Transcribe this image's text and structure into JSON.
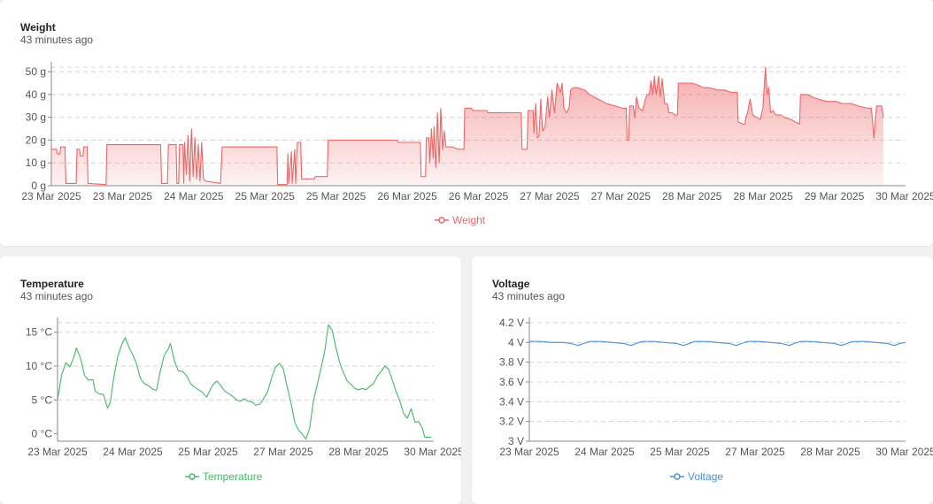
{
  "colors": {
    "weight": "#ee6666",
    "temperature": "#45b865",
    "voltage": "#4a90d9"
  },
  "weight_card": {
    "title": "Weight",
    "subtitle": "43 minutes ago",
    "legend": "Weight",
    "chart_data": {
      "type": "area",
      "series": [
        {
          "name": "Weight"
        }
      ],
      "ylim": [
        0,
        52
      ],
      "y_ticks": [
        0,
        10,
        20,
        30,
        40,
        50
      ],
      "y_tick_labels": [
        "0 g",
        "10 g",
        "20 g",
        "30 g",
        "40 g",
        "50 g"
      ],
      "x_tick_labels": [
        "23 Mar 2025",
        "23 Mar 2025",
        "24 Mar 2025",
        "25 Mar 2025",
        "25 Mar 2025",
        "26 Mar 2025",
        "26 Mar 2025",
        "27 Mar 2025",
        "27 Mar 2025",
        "28 Mar 2025",
        "28 Mar 2025",
        "29 Mar 2025",
        "30 Mar 2025"
      ],
      "x_range": [
        0,
        100
      ],
      "points": [
        [
          0,
          16
        ],
        [
          0.6,
          16
        ],
        [
          0.7,
          14
        ],
        [
          1.0,
          14
        ],
        [
          1.1,
          17
        ],
        [
          1.6,
          17
        ],
        [
          1.7,
          1
        ],
        [
          2.9,
          1
        ],
        [
          3.0,
          16
        ],
        [
          3.3,
          16
        ],
        [
          3.4,
          13
        ],
        [
          3.7,
          13
        ],
        [
          3.8,
          17
        ],
        [
          4.2,
          17
        ],
        [
          4.3,
          1
        ],
        [
          6.4,
          0.5
        ],
        [
          6.5,
          18
        ],
        [
          12.8,
          18
        ],
        [
          12.9,
          1
        ],
        [
          13.6,
          1
        ],
        [
          13.7,
          18
        ],
        [
          14.6,
          18
        ],
        [
          14.7,
          1
        ],
        [
          14.9,
          1
        ],
        [
          15.0,
          18
        ],
        [
          15.4,
          18
        ],
        [
          15.5,
          1
        ],
        [
          15.6,
          19
        ],
        [
          15.8,
          5
        ],
        [
          16.0,
          22
        ],
        [
          16.2,
          2
        ],
        [
          16.4,
          25
        ],
        [
          16.6,
          4
        ],
        [
          16.8,
          21
        ],
        [
          17.0,
          3
        ],
        [
          17.2,
          18
        ],
        [
          17.4,
          2
        ],
        [
          17.6,
          19
        ],
        [
          17.8,
          3
        ],
        [
          18.0,
          2
        ],
        [
          19.8,
          1
        ],
        [
          20.0,
          17
        ],
        [
          26.4,
          17
        ],
        [
          26.5,
          0.5
        ],
        [
          27.6,
          0.5
        ],
        [
          27.7,
          14
        ],
        [
          27.8,
          1
        ],
        [
          28.1,
          15
        ],
        [
          28.2,
          1
        ],
        [
          28.5,
          16
        ],
        [
          28.6,
          1
        ],
        [
          28.8,
          19
        ],
        [
          29.2,
          19
        ],
        [
          29.3,
          3
        ],
        [
          30.8,
          3
        ],
        [
          30.9,
          4
        ],
        [
          32.3,
          4
        ],
        [
          32.4,
          20
        ],
        [
          40.5,
          20
        ],
        [
          40.6,
          19
        ],
        [
          43.2,
          19
        ],
        [
          43.3,
          4
        ],
        [
          43.8,
          4
        ],
        [
          43.9,
          21
        ],
        [
          44.2,
          21
        ],
        [
          44.3,
          10
        ],
        [
          44.5,
          25
        ],
        [
          44.7,
          12
        ],
        [
          44.8,
          26
        ],
        [
          45.0,
          8
        ],
        [
          45.2,
          32
        ],
        [
          45.4,
          10
        ],
        [
          45.6,
          34
        ],
        [
          45.8,
          16
        ],
        [
          46.0,
          24
        ],
        [
          46.2,
          17
        ],
        [
          47.0,
          17
        ],
        [
          47.6,
          16
        ],
        [
          48.3,
          16
        ],
        [
          48.4,
          34
        ],
        [
          49.2,
          34
        ],
        [
          49.3,
          33
        ],
        [
          51.0,
          33
        ],
        [
          51.1,
          32
        ],
        [
          52.3,
          32
        ],
        [
          55.0,
          32
        ],
        [
          55.1,
          16
        ],
        [
          55.7,
          16
        ],
        [
          55.8,
          33
        ],
        [
          56.4,
          33
        ],
        [
          56.5,
          23
        ],
        [
          56.7,
          36
        ],
        [
          56.9,
          21
        ],
        [
          57.1,
          22
        ],
        [
          57.3,
          38
        ],
        [
          57.5,
          24
        ],
        [
          57.8,
          26
        ],
        [
          58.1,
          39
        ],
        [
          58.3,
          30
        ],
        [
          58.6,
          42
        ],
        [
          58.9,
          32
        ],
        [
          59.2,
          45
        ],
        [
          59.6,
          41
        ],
        [
          59.8,
          45
        ],
        [
          60.0,
          34
        ],
        [
          60.3,
          32
        ],
        [
          60.6,
          34
        ],
        [
          60.8,
          42
        ],
        [
          61.1,
          43
        ],
        [
          61.6,
          43
        ],
        [
          62.4,
          42
        ],
        [
          63.0,
          40
        ],
        [
          64.0,
          38
        ],
        [
          65.0,
          36
        ],
        [
          66.0,
          35
        ],
        [
          66.9,
          34
        ],
        [
          67.3,
          34
        ],
        [
          67.4,
          20
        ],
        [
          67.6,
          20
        ],
        [
          67.7,
          35
        ],
        [
          68.1,
          35
        ],
        [
          68.3,
          30
        ],
        [
          68.5,
          39
        ],
        [
          68.8,
          34
        ],
        [
          69.2,
          33
        ],
        [
          69.7,
          40
        ],
        [
          70.0,
          40
        ],
        [
          70.2,
          46
        ],
        [
          70.4,
          40
        ],
        [
          70.6,
          48
        ],
        [
          70.8,
          40
        ],
        [
          71.1,
          48
        ],
        [
          71.3,
          39
        ],
        [
          71.5,
          47
        ],
        [
          71.8,
          36
        ],
        [
          72.1,
          36
        ],
        [
          72.3,
          32
        ],
        [
          72.7,
          32
        ],
        [
          73.0,
          31
        ],
        [
          73.3,
          31
        ],
        [
          73.4,
          45
        ],
        [
          75.0,
          45
        ],
        [
          75.8,
          44
        ],
        [
          76.3,
          43
        ],
        [
          77.0,
          43
        ],
        [
          78.0,
          42
        ],
        [
          78.8,
          42
        ],
        [
          79.5,
          41
        ],
        [
          80.3,
          41
        ],
        [
          80.4,
          28
        ],
        [
          81.0,
          27
        ],
        [
          81.2,
          27
        ],
        [
          81.3,
          30
        ],
        [
          81.5,
          32
        ],
        [
          81.8,
          38
        ],
        [
          82.1,
          31
        ],
        [
          82.6,
          30
        ],
        [
          83.0,
          29
        ],
        [
          83.3,
          34
        ],
        [
          83.6,
          52
        ],
        [
          83.8,
          40
        ],
        [
          84.0,
          43
        ],
        [
          84.2,
          32
        ],
        [
          84.5,
          33
        ],
        [
          84.8,
          31
        ],
        [
          85.4,
          31
        ],
        [
          85.8,
          30
        ],
        [
          86.6,
          29
        ],
        [
          87.6,
          27
        ],
        [
          87.7,
          40
        ],
        [
          88.6,
          40
        ],
        [
          89.0,
          39
        ],
        [
          89.8,
          38
        ],
        [
          90.8,
          37
        ],
        [
          91.8,
          37
        ],
        [
          92.6,
          36
        ],
        [
          93.6,
          36
        ],
        [
          94.4,
          35
        ],
        [
          95.6,
          34
        ],
        [
          96.0,
          34
        ],
        [
          96.3,
          21
        ],
        [
          96.6,
          35
        ],
        [
          97.2,
          35
        ],
        [
          97.4,
          30
        ]
      ]
    }
  },
  "temp_card": {
    "title": "Temperature",
    "subtitle": "43 minutes ago",
    "legend": "Temperature",
    "chart_data": {
      "type": "line",
      "series": [
        {
          "name": "Temperature"
        }
      ],
      "ylim": [
        -1.1,
        16.4
      ],
      "y_ticks": [
        0,
        5,
        10,
        15
      ],
      "y_tick_labels": [
        "0 °C",
        "5 °C",
        "10 °C",
        "15 °C"
      ],
      "x_tick_labels": [
        "23 Mar 2025",
        "24 Mar 2025",
        "25 Mar 2025",
        "27 Mar 2025",
        "28 Mar 2025",
        "30 Mar 2025"
      ],
      "x_range": [
        0,
        100
      ],
      "points": [
        [
          0,
          5
        ],
        [
          1.1,
          8.7
        ],
        [
          2.2,
          10.5
        ],
        [
          3.3,
          9.9
        ],
        [
          4.4,
          11.4
        ],
        [
          5.0,
          12.7
        ],
        [
          6.1,
          11.2
        ],
        [
          7.2,
          8.6
        ],
        [
          8.3,
          7.9
        ],
        [
          9.4,
          8.0
        ],
        [
          10.0,
          6.3
        ],
        [
          11.1,
          5.9
        ],
        [
          12.2,
          5.8
        ],
        [
          13.3,
          3.8
        ],
        [
          14.0,
          4.6
        ],
        [
          15.0,
          8.5
        ],
        [
          16.0,
          11.4
        ],
        [
          17.0,
          13.1
        ],
        [
          18.0,
          14.2
        ],
        [
          19.1,
          12.6
        ],
        [
          20.0,
          11.7
        ],
        [
          21.0,
          10.3
        ],
        [
          22.0,
          8.2
        ],
        [
          23.1,
          7.4
        ],
        [
          24.2,
          7.1
        ],
        [
          25.2,
          6.6
        ],
        [
          26.3,
          6.4
        ],
        [
          27.3,
          9.2
        ],
        [
          28.3,
          11.5
        ],
        [
          29.4,
          12.5
        ],
        [
          30.0,
          13.3
        ],
        [
          31.1,
          10.7
        ],
        [
          32.1,
          9.3
        ],
        [
          33.2,
          9.2
        ],
        [
          34.3,
          8.6
        ],
        [
          35.4,
          7.4
        ],
        [
          36.4,
          6.9
        ],
        [
          37.5,
          6.5
        ],
        [
          38.6,
          6.1
        ],
        [
          39.6,
          5.4
        ],
        [
          40.3,
          6.2
        ],
        [
          41.4,
          7.3
        ],
        [
          42.4,
          7.8
        ],
        [
          43.5,
          7.0
        ],
        [
          44.5,
          6.3
        ],
        [
          45.6,
          5.9
        ],
        [
          46.6,
          5.5
        ],
        [
          47.6,
          5.0
        ],
        [
          48.6,
          4.8
        ],
        [
          49.6,
          5.2
        ],
        [
          50.6,
          4.8
        ],
        [
          51.7,
          4.7
        ],
        [
          52.7,
          4.2
        ],
        [
          53.8,
          4.4
        ],
        [
          54.8,
          5.2
        ],
        [
          55.9,
          6.3
        ],
        [
          56.9,
          8.3
        ],
        [
          58.0,
          9.9
        ],
        [
          59.0,
          10.4
        ],
        [
          60.0,
          9.6
        ],
        [
          61.0,
          7.0
        ],
        [
          62.0,
          4.7
        ],
        [
          63.0,
          1.8
        ],
        [
          64.0,
          0.6
        ],
        [
          65.0,
          0.0
        ],
        [
          66.0,
          -0.8
        ],
        [
          67.0,
          0.8
        ],
        [
          68.0,
          4.8
        ],
        [
          69.0,
          7.2
        ],
        [
          70.0,
          9.6
        ],
        [
          71.0,
          12.2
        ],
        [
          72.0,
          16.1
        ],
        [
          73.0,
          15.3
        ],
        [
          74.0,
          12.7
        ],
        [
          75.0,
          10.5
        ],
        [
          76.0,
          9.0
        ],
        [
          77.0,
          7.8
        ],
        [
          78.0,
          7.3
        ],
        [
          79.0,
          6.7
        ],
        [
          80.0,
          6.5
        ],
        [
          81.0,
          6.7
        ],
        [
          82.0,
          6.5
        ],
        [
          83.0,
          7.0
        ],
        [
          84.0,
          7.4
        ],
        [
          85.0,
          8.5
        ],
        [
          86.0,
          9.2
        ],
        [
          87.0,
          10.0
        ],
        [
          88.0,
          9.5
        ],
        [
          89.0,
          7.9
        ],
        [
          90.0,
          6.2
        ],
        [
          91.0,
          4.8
        ],
        [
          92.0,
          3.0
        ],
        [
          93.0,
          2.3
        ],
        [
          94.0,
          3.7
        ],
        [
          95.0,
          1.7
        ],
        [
          96.0,
          1.8
        ],
        [
          97.0,
          0.8
        ],
        [
          97.6,
          -0.5
        ],
        [
          99.3,
          -0.5
        ]
      ]
    }
  },
  "volt_card": {
    "title": "Voltage",
    "subtitle": "43 minutes ago",
    "legend": "Voltage",
    "chart_data": {
      "type": "line",
      "series": [
        {
          "name": "Voltage"
        }
      ],
      "ylim": [
        3.0,
        4.2
      ],
      "y_ticks": [
        3.0,
        3.2,
        3.4,
        3.6,
        3.8,
        4.0,
        4.2
      ],
      "y_tick_labels": [
        "3 V",
        "3.2 V",
        "3.4 V",
        "3.6 V",
        "3.8 V",
        "4 V",
        "4.2 V"
      ],
      "x_tick_labels": [
        "23 Mar 2025",
        "24 Mar 2025",
        "25 Mar 2025",
        "27 Mar 2025",
        "28 Mar 2025",
        "30 Mar 2025"
      ],
      "x_range": [
        0,
        100
      ],
      "points": [
        [
          0,
          4.01
        ],
        [
          3,
          4.01
        ],
        [
          6,
          4.0
        ],
        [
          9,
          4.0
        ],
        [
          11,
          3.99
        ],
        [
          13,
          3.97
        ],
        [
          14.5,
          3.99
        ],
        [
          16,
          4.01
        ],
        [
          19,
          4.01
        ],
        [
          22,
          4.0
        ],
        [
          25,
          3.99
        ],
        [
          27,
          3.97
        ],
        [
          28.5,
          3.99
        ],
        [
          30,
          4.01
        ],
        [
          33,
          4.01
        ],
        [
          36,
          4.0
        ],
        [
          39,
          3.99
        ],
        [
          41,
          3.97
        ],
        [
          42.5,
          3.99
        ],
        [
          44,
          4.01
        ],
        [
          47,
          4.01
        ],
        [
          50,
          4.0
        ],
        [
          53,
          3.99
        ],
        [
          55,
          3.97
        ],
        [
          56.5,
          3.99
        ],
        [
          58,
          4.01
        ],
        [
          61,
          4.01
        ],
        [
          64,
          4.0
        ],
        [
          67,
          3.99
        ],
        [
          69,
          3.97
        ],
        [
          70.5,
          3.99
        ],
        [
          72,
          4.01
        ],
        [
          75,
          4.01
        ],
        [
          78,
          4.0
        ],
        [
          81,
          3.99
        ],
        [
          83,
          3.97
        ],
        [
          84.5,
          3.99
        ],
        [
          86,
          4.01
        ],
        [
          89,
          4.01
        ],
        [
          92,
          4.0
        ],
        [
          95,
          3.99
        ],
        [
          97,
          3.97
        ],
        [
          98.5,
          3.99
        ],
        [
          100,
          4.0
        ]
      ]
    }
  }
}
